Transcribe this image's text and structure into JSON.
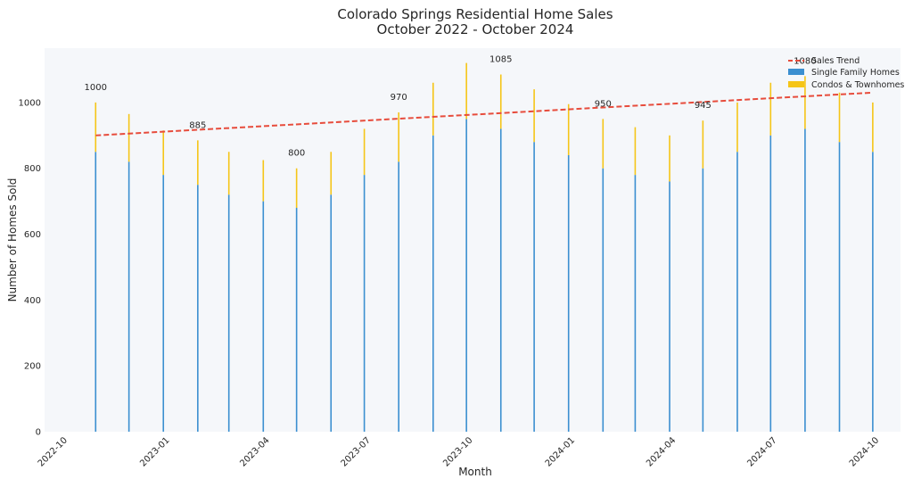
{
  "chart_data": {
    "type": "bar",
    "title": "Colorado Springs Residential Home Sales",
    "subtitle": "October 2022 - October 2024",
    "xlabel": "Month",
    "ylabel": "Number of Homes Sold",
    "ylim": [
      0,
      1165
    ],
    "xlim": [
      "2022-09-15",
      "2024-10-25"
    ],
    "y_ticks": [
      0,
      200,
      400,
      600,
      800,
      1000
    ],
    "x_ticks": [
      "2022-10",
      "2023-01",
      "2023-04",
      "2023-07",
      "2023-10",
      "2024-01",
      "2024-04",
      "2024-07",
      "2024-10"
    ],
    "grid": false,
    "stacked": true,
    "legend_position": "top-right",
    "dates": [
      "2022-10-31",
      "2022-11-30",
      "2022-12-31",
      "2023-01-31",
      "2023-02-28",
      "2023-03-31",
      "2023-04-30",
      "2023-05-31",
      "2023-06-30",
      "2023-07-31",
      "2023-08-31",
      "2023-09-30",
      "2023-10-31",
      "2023-11-30",
      "2023-12-31",
      "2024-01-31",
      "2024-02-29",
      "2024-03-31",
      "2024-04-30",
      "2024-05-31",
      "2024-06-30",
      "2024-07-31",
      "2024-08-31",
      "2024-09-30"
    ],
    "series": [
      {
        "name": "Single Family Homes",
        "color": "#3b8fd0",
        "values": [
          850,
          820,
          780,
          750,
          720,
          700,
          680,
          720,
          780,
          820,
          900,
          950,
          920,
          880,
          840,
          800,
          780,
          760,
          800,
          850,
          900,
          920,
          880,
          850
        ]
      },
      {
        "name": "Condos & Townhomes",
        "color": "#f5c518",
        "values": [
          150,
          145,
          135,
          135,
          130,
          125,
          120,
          130,
          140,
          150,
          160,
          170,
          165,
          160,
          155,
          150,
          145,
          140,
          145,
          150,
          160,
          160,
          150,
          150
        ]
      }
    ],
    "trend": {
      "name": "Sales Trend",
      "color": "#e74c3c",
      "start": [
        "2022-10-31",
        900
      ],
      "end": [
        "2024-09-30",
        1030
      ]
    },
    "annotations": [
      {
        "date": "2022-10-31",
        "text": "1000"
      },
      {
        "date": "2023-01-31",
        "text": "885"
      },
      {
        "date": "2023-04-30",
        "text": "800"
      },
      {
        "date": "2023-07-31",
        "text": "970"
      },
      {
        "date": "2023-10-31",
        "text": "1085"
      },
      {
        "date": "2024-01-31",
        "text": "950"
      },
      {
        "date": "2024-04-30",
        "text": "945"
      },
      {
        "date": "2024-07-31",
        "text": "1080"
      }
    ]
  }
}
